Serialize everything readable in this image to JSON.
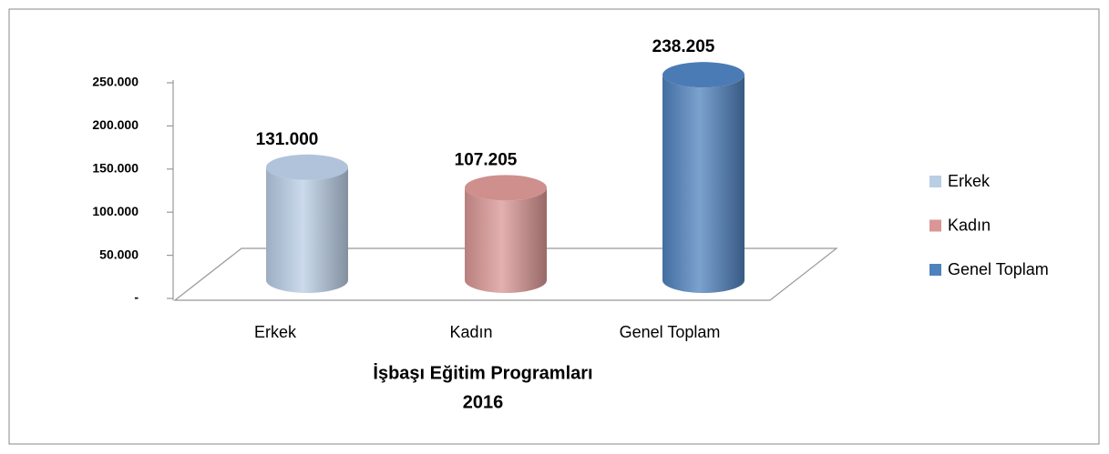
{
  "chart_data": {
    "type": "cylinder",
    "title": "İşbaşı Eğitim Programları",
    "subtitle": "2016",
    "categories": [
      "Erkek",
      "Kadın",
      "Genel Toplam"
    ],
    "values": [
      131000,
      107205,
      238205
    ],
    "value_labels": [
      "131.000",
      "107.205",
      "238.205"
    ],
    "colors": [
      "#b9cde5",
      "#d99694",
      "#4f81bd"
    ],
    "ylim": [
      0,
      250000
    ],
    "yticks": [
      {
        "value": 0,
        "label": "-"
      },
      {
        "value": 50000,
        "label": "50.000"
      },
      {
        "value": 100000,
        "label": "100.000"
      },
      {
        "value": 150000,
        "label": "150.000"
      },
      {
        "value": 200000,
        "label": "200.000"
      },
      {
        "value": 250000,
        "label": "250.000"
      }
    ],
    "grid": false,
    "legend": "right"
  }
}
